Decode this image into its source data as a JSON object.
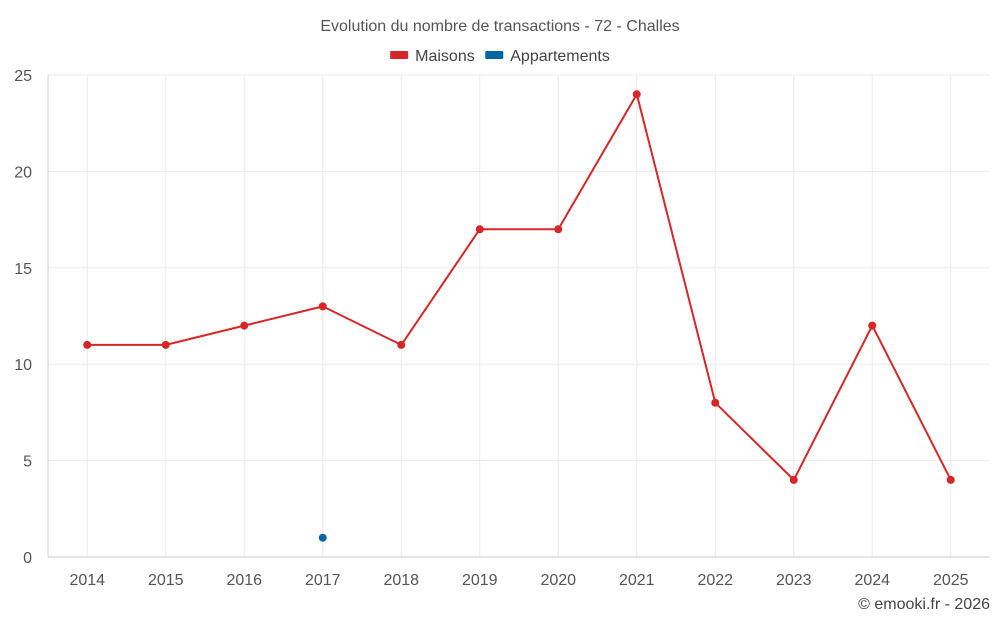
{
  "chart_data": {
    "type": "line",
    "title": "Evolution du nombre de transactions - 72 - Challes",
    "categories": [
      "2014",
      "2015",
      "2016",
      "2017",
      "2018",
      "2019",
      "2020",
      "2021",
      "2022",
      "2023",
      "2024",
      "2025"
    ],
    "series": [
      {
        "name": "Maisons",
        "color": "#d62728",
        "values": [
          11,
          11,
          12,
          13,
          11,
          17,
          17,
          24,
          8,
          4,
          12,
          4
        ]
      },
      {
        "name": "Appartements",
        "color": "#0066a1",
        "values": [
          null,
          null,
          null,
          1,
          null,
          null,
          null,
          null,
          null,
          null,
          null,
          null
        ]
      }
    ],
    "ylim": [
      0,
      25
    ],
    "yticks": [
      0,
      5,
      10,
      15,
      20,
      25
    ],
    "grid": true,
    "legend_position": "top-center",
    "xlabel": "",
    "ylabel": ""
  },
  "credit": "© emooki.fr - 2026"
}
